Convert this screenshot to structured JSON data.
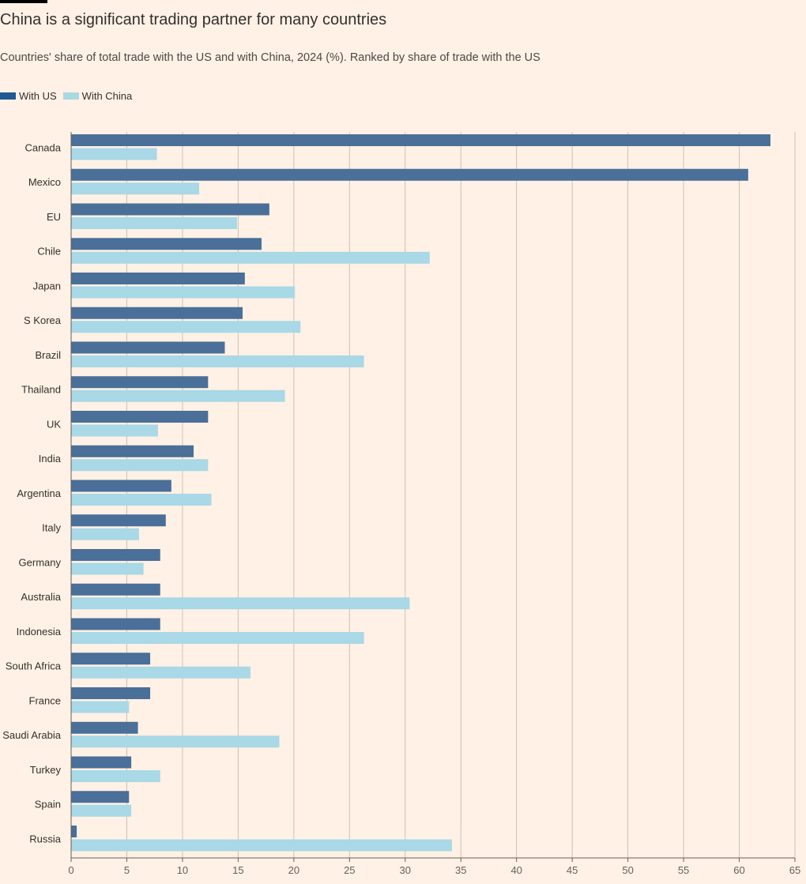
{
  "chart_data": {
    "type": "bar",
    "orientation": "horizontal",
    "title": "China is a significant trading partner for many countries",
    "subtitle": "Countries' share of total trade with the US and with China, 2024 (%). Ranked by share of trade with the US",
    "xlabel": "",
    "ylabel": "",
    "xlim": [
      0,
      65
    ],
    "xticks": [
      0,
      5,
      10,
      15,
      20,
      25,
      30,
      35,
      40,
      45,
      50,
      55,
      60,
      65
    ],
    "grid": true,
    "legend_position": "top-left",
    "categories": [
      "Canada",
      "Mexico",
      "EU",
      "Chile",
      "Japan",
      "S Korea",
      "Brazil",
      "Thailand",
      "UK",
      "India",
      "Argentina",
      "Italy",
      "Germany",
      "Australia",
      "Indonesia",
      "South Africa",
      "France",
      "Saudi Arabia",
      "Turkey",
      "Spain",
      "Russia"
    ],
    "series": [
      {
        "name": "With US",
        "color": "#4a6f98",
        "legend_color": "#1f5a96",
        "values": [
          62.8,
          60.8,
          17.8,
          17.1,
          15.6,
          15.4,
          13.8,
          12.3,
          12.3,
          11.0,
          9.0,
          8.5,
          8.0,
          8.0,
          8.0,
          7.1,
          7.1,
          6.0,
          5.4,
          5.2,
          0.5
        ]
      },
      {
        "name": "With China",
        "color": "#a9d8e6",
        "legend_color": "#a9d8e6",
        "values": [
          7.7,
          11.5,
          14.9,
          32.2,
          20.1,
          20.6,
          26.3,
          19.2,
          7.8,
          12.3,
          12.6,
          6.1,
          6.5,
          30.4,
          26.3,
          16.1,
          5.2,
          18.7,
          8.0,
          5.4,
          34.2
        ]
      }
    ]
  }
}
